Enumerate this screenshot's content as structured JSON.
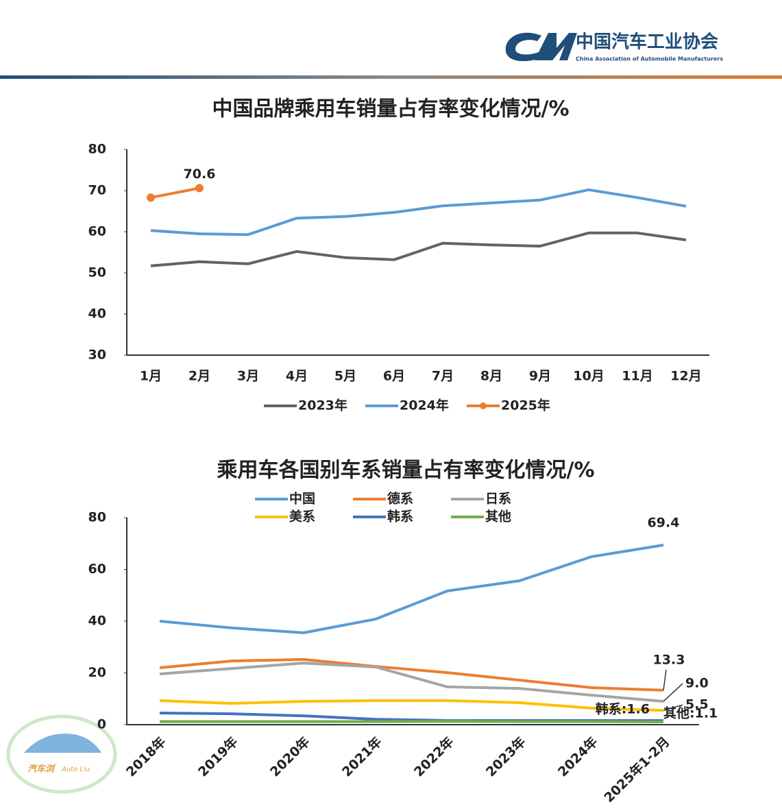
{
  "header": {
    "org": "中国汽车工业协会",
    "org_en": "China Association of Automobile Manufacturers"
  },
  "brand": {
    "name": "汽车浏",
    "name_en": "Auto Liu"
  },
  "chart_data": [
    {
      "type": "line",
      "title": "中国品牌乘用车销量占有率变化情况/%",
      "categories": [
        "1月",
        "2月",
        "3月",
        "4月",
        "5月",
        "6月",
        "7月",
        "8月",
        "9月",
        "10月",
        "11月",
        "12月"
      ],
      "ylim": [
        30,
        80
      ],
      "yticks": [
        30,
        40,
        50,
        60,
        70,
        80
      ],
      "legend": "bottom",
      "series": [
        {
          "name": "2023年",
          "color": "#636363",
          "values": [
            51.7,
            52.7,
            52.2,
            55.2,
            53.7,
            53.2,
            57.2,
            56.8,
            56.5,
            59.7,
            59.7,
            58.0
          ]
        },
        {
          "name": "2024年",
          "color": "#5b9bd5",
          "values": [
            60.3,
            59.5,
            59.3,
            63.3,
            63.7,
            64.7,
            66.3,
            67.0,
            67.7,
            70.2,
            68.3,
            66.2
          ]
        },
        {
          "name": "2025年",
          "color": "#ed7d31",
          "marker": true,
          "values": [
            68.3,
            70.6,
            null,
            null,
            null,
            null,
            null,
            null,
            null,
            null,
            null,
            null
          ],
          "value_labels": [
            null,
            "70.6",
            null,
            null,
            null,
            null,
            null,
            null,
            null,
            null,
            null,
            null
          ]
        }
      ]
    },
    {
      "type": "line",
      "title": "乘用车各国别车系销量占有率变化情况/%",
      "categories": [
        "2018年",
        "2019年",
        "2020年",
        "2021年",
        "2022年",
        "2023年",
        "2024年",
        "2025年1-2月"
      ],
      "ylim": [
        0,
        80
      ],
      "yticks": [
        0,
        20,
        40,
        60,
        80
      ],
      "legend": "top",
      "series": [
        {
          "name": "中国",
          "color": "#5b9bd5",
          "values": [
            40.0,
            37.4,
            35.5,
            40.8,
            51.7,
            55.6,
            64.9,
            69.4
          ],
          "value_labels": [
            null,
            null,
            null,
            null,
            null,
            null,
            null,
            "69.4"
          ]
        },
        {
          "name": "德系",
          "color": "#ed7d31",
          "values": [
            22.0,
            24.6,
            25.2,
            22.5,
            20.1,
            17.2,
            14.3,
            13.3
          ],
          "value_labels": [
            null,
            null,
            null,
            null,
            null,
            null,
            null,
            "13.3"
          ]
        },
        {
          "name": "日系",
          "color": "#a5a5a5",
          "values": [
            19.6,
            21.7,
            23.8,
            22.3,
            14.6,
            14.0,
            11.4,
            9.0
          ],
          "value_labels": [
            null,
            null,
            null,
            null,
            null,
            null,
            null,
            "9.0"
          ]
        },
        {
          "name": "美系",
          "color": "#ffc000",
          "values": [
            9.3,
            8.2,
            9.0,
            9.3,
            9.3,
            8.5,
            6.4,
            5.5
          ],
          "value_labels": [
            null,
            null,
            null,
            null,
            null,
            null,
            null,
            "5.5"
          ]
        },
        {
          "name": "韩系",
          "color": "#4472c4",
          "values": [
            4.5,
            4.2,
            3.4,
            2.1,
            1.6,
            1.6,
            1.6,
            1.6
          ],
          "value_labels": [
            null,
            null,
            null,
            null,
            null,
            null,
            null,
            "韩系:1.6"
          ]
        },
        {
          "name": "其他",
          "color": "#70ad47",
          "values": [
            1.2,
            1.2,
            1.2,
            1.2,
            1.3,
            1.2,
            1.2,
            1.1
          ],
          "value_labels": [
            null,
            null,
            null,
            null,
            null,
            null,
            null,
            "其他:1.1"
          ]
        }
      ]
    }
  ]
}
